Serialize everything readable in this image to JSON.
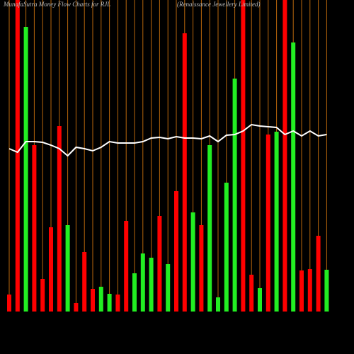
{
  "chart_data": {
    "type": "bar",
    "title": "MunafaSutra  Money Flow  Charts for RJL",
    "subtitle": "(Renaissance  Jewellery Limited)",
    "categories": [
      null,
      null,
      null,
      null,
      null,
      null,
      null,
      null,
      null,
      null,
      null,
      null,
      null,
      null,
      null,
      null,
      null,
      null,
      null,
      null,
      null,
      null,
      null,
      null,
      null,
      null,
      null,
      null,
      null,
      null,
      null,
      null,
      null,
      null,
      null,
      null,
      null,
      null,
      null
    ],
    "bars": {
      "values": [
        24,
        440,
        402,
        235,
        46,
        119,
        262,
        122,
        12,
        84,
        32,
        35,
        25,
        24,
        128,
        54,
        82,
        76,
        135,
        67,
        170,
        393,
        140,
        122,
        235,
        20,
        182,
        329,
        440,
        52,
        33,
        250,
        254,
        440,
        380,
        58,
        60,
        107,
        59
      ],
      "colors": [
        "#ff0000",
        "#ff0000",
        "#22ee22",
        "#ff0000",
        "#ff0000",
        "#ff0000",
        "#ff0000",
        "#22ee22",
        "#ff0000",
        "#ff0000",
        "#ff0000",
        "#22ee22",
        "#22ee22",
        "#ff0000",
        "#ff0000",
        "#22ee22",
        "#22ee22",
        "#22ee22",
        "#ff0000",
        "#22ee22",
        "#ff0000",
        "#ff0000",
        "#22ee22",
        "#ff0000",
        "#22ee22",
        "#22ee22",
        "#22ee22",
        "#22ee22",
        "#ff0000",
        "#ff0000",
        "#22ee22",
        "#ff0000",
        "#22ee22",
        "#ff0000",
        "#22ee22",
        "#ff0000",
        "#ff0000",
        "#ff0000",
        "#22ee22"
      ]
    },
    "line": {
      "color": "#ffffff",
      "values": [
        230,
        225,
        240,
        240,
        239,
        235,
        230,
        220,
        232,
        230,
        227,
        232,
        240,
        238,
        238,
        238,
        240,
        245,
        246,
        244,
        247,
        245,
        245,
        244,
        248,
        240,
        249,
        250,
        255,
        264,
        262,
        261,
        260,
        250,
        255,
        248,
        255,
        248,
        250
      ]
    },
    "ylim": [
      0,
      440
    ],
    "gridline_color": "#b8660b"
  }
}
